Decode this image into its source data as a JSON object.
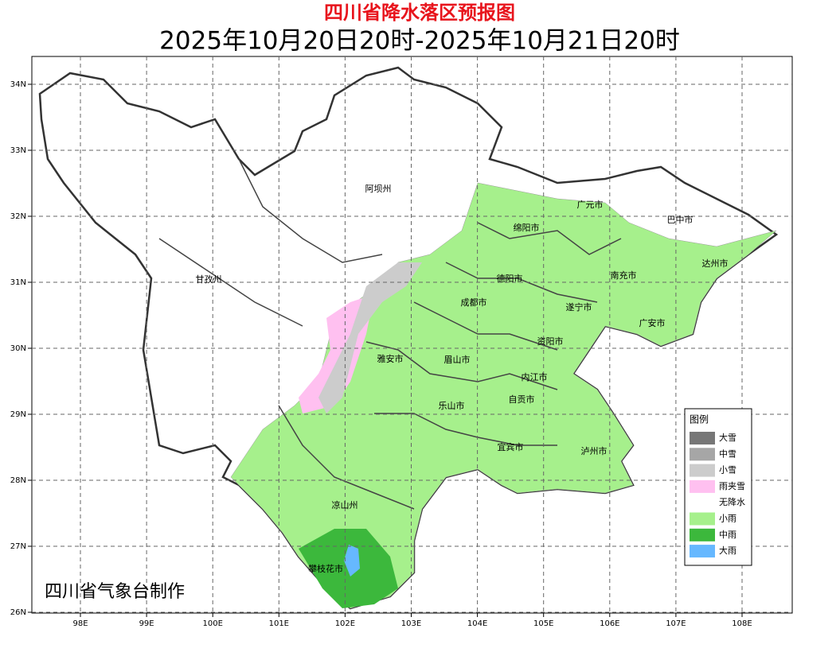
{
  "header": {
    "title": "四川省降水落区预报图",
    "subtitle": "2025年10月20日20时-2025年10月21日20时"
  },
  "axes": {
    "x_labels": [
      "98E",
      "99E",
      "100E",
      "101E",
      "102E",
      "103E",
      "104E",
      "105E",
      "106E",
      "107E",
      "108E"
    ],
    "y_labels": [
      "34N",
      "33N",
      "32N",
      "31N",
      "30N",
      "29N",
      "28N",
      "27N",
      "26N"
    ]
  },
  "cities": [
    "阿坝州",
    "甘孜州",
    "广元市",
    "巴中市",
    "绵阳市",
    "达州市",
    "德阳市",
    "南充市",
    "成都市",
    "遂宁市",
    "广安市",
    "雅安市",
    "资阳市",
    "眉山市",
    "内江市",
    "自贡市",
    "乐山市",
    "宜宾市",
    "泸州市",
    "凉山州",
    "攀枝花市"
  ],
  "legend": {
    "title": "图例",
    "items": [
      {
        "label": "大雪",
        "color": "#777777"
      },
      {
        "label": "中雪",
        "color": "#a6a6a6"
      },
      {
        "label": "小雪",
        "color": "#cccccc"
      },
      {
        "label": "雨夹雪",
        "color": "#ffc0f0"
      },
      {
        "label": "无降水",
        "color": "#ffffff"
      },
      {
        "label": "小雨",
        "color": "#a6f08c"
      },
      {
        "label": "中雨",
        "color": "#3cb83c"
      },
      {
        "label": "大雨",
        "color": "#66b8ff"
      }
    ]
  },
  "footer": "四川省气象台制作"
}
